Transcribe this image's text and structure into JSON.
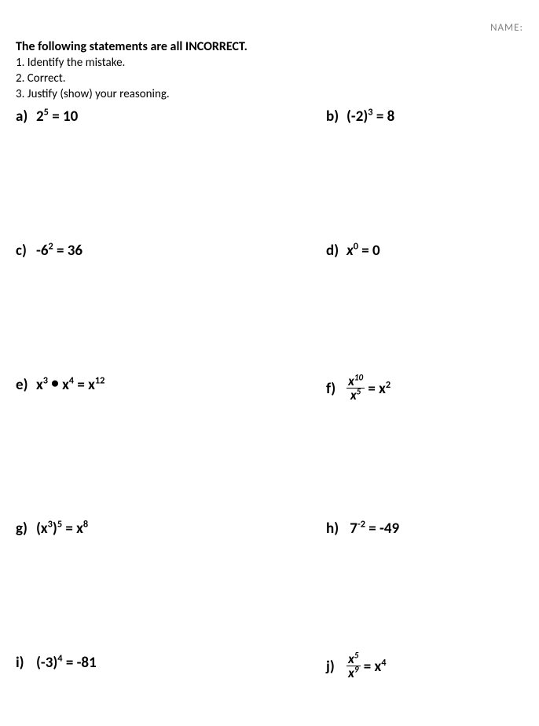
{
  "name_label": "NAME:",
  "title": "The following statements are all INCORRECT.",
  "instructions": {
    "i1": "1. Identify the mistake.",
    "i2": "2. Correct.",
    "i3": "3. Justify (show) your reasoning."
  },
  "problems": {
    "a_label": "a)",
    "b_label": "b)",
    "c_label": "c)",
    "d_label": "d)",
    "e_label": "e)",
    "f_label": "f)",
    "g_label": "g)",
    "h_label": "h)",
    "i_label": "i)",
    "j_label": "j)",
    "a_base": "2",
    "a_exp": "5",
    "a_eq": " = 10",
    "b_base": "(-2)",
    "b_exp": "3",
    "b_eq": " = 8",
    "c_base": "-6",
    "c_exp": "2",
    "c_eq": " = 36",
    "d_var": "x",
    "d_exp": "0",
    "d_eq": " = 0",
    "e_x1": "x",
    "e_exp1": "3",
    "e_dot": " • ",
    "e_x2": "x",
    "e_exp2": "4",
    "e_eqx": " = x",
    "e_exp3": "12",
    "f_num_x": "x",
    "f_num_exp": "10",
    "f_den_x": "x",
    "f_den_exp": "5",
    "f_eq": " = x",
    "f_res_exp": "2",
    "g_lparen": "(x",
    "g_inner_exp": "3",
    "g_rparen": ")",
    "g_outer_exp": "5",
    "g_eq": " = x",
    "g_res_exp": "8",
    "h_base": "7",
    "h_exp": "-2",
    "h_eq": " = -49",
    "i_base": "(-3)",
    "i_exp": "4",
    "i_eq": " = -81",
    "j_num_x": "x",
    "j_num_exp": "5",
    "j_den_x": "x",
    "j_den_exp": "9",
    "j_eq": " = x",
    "j_res_exp": "4"
  },
  "style": {
    "background_color": "#ffffff",
    "text_color": "#000000",
    "name_color": "#808080",
    "title_fontsize": 16,
    "instruction_fontsize": 15,
    "problem_fontsize": 19,
    "row_spacing": 148
  }
}
